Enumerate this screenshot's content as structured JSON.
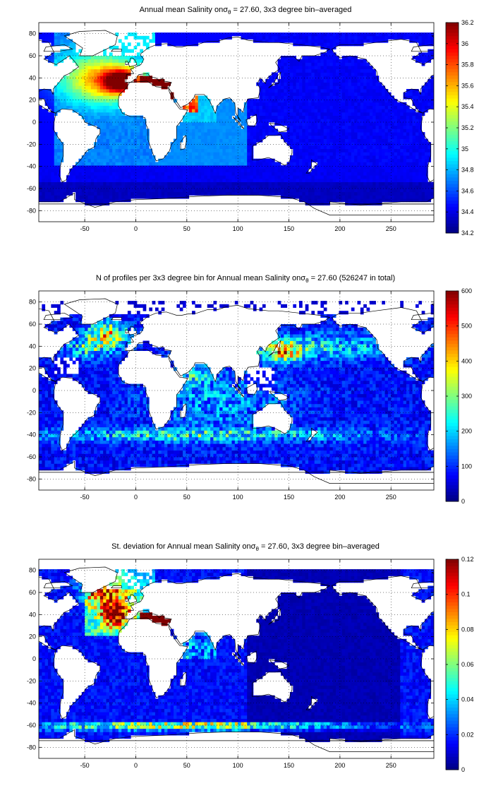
{
  "colormap": "jet",
  "land_color": "#ffffff",
  "chart_data": [
    {
      "type": "heatmap",
      "title_pre": "Annual mean Salinity on",
      "title_symbol": "σ",
      "title_subscript": "θ",
      "title_post": " = 27.60, 3x3 degree bin–averaged",
      "xlabel": "",
      "ylabel": "",
      "xlim": [
        -95,
        292
      ],
      "ylim": [
        -90,
        90
      ],
      "xticks": [
        -50,
        0,
        50,
        100,
        150,
        200,
        250
      ],
      "yticks": [
        -80,
        -60,
        -40,
        -20,
        0,
        20,
        40,
        60,
        80
      ],
      "grid": true,
      "colorbar": {
        "min": 34.2,
        "max": 36.2,
        "ticks": [
          34.2,
          34.4,
          34.6,
          34.8,
          35,
          35.2,
          35.4,
          35.6,
          35.8,
          36,
          36.2
        ]
      },
      "field": "salinity"
    },
    {
      "type": "heatmap",
      "title_pre": "N of profiles per 3x3 degree bin for Annual mean Salinity on",
      "title_symbol": "σ",
      "title_subscript": "θ",
      "title_post": " = 27.60 (526247 in total)",
      "xlabel": "",
      "ylabel": "",
      "xlim": [
        -95,
        292
      ],
      "ylim": [
        -90,
        90
      ],
      "xticks": [
        -50,
        0,
        50,
        100,
        150,
        200,
        250
      ],
      "yticks": [
        -80,
        -60,
        -40,
        -20,
        0,
        20,
        40,
        60,
        80
      ],
      "grid": true,
      "colorbar": {
        "min": 0,
        "max": 600,
        "ticks": [
          0,
          100,
          200,
          300,
          400,
          500,
          600
        ]
      },
      "field": "count"
    },
    {
      "type": "heatmap",
      "title_pre": "St. deviation for Annual mean Salinity on",
      "title_symbol": "σ",
      "title_subscript": "θ",
      "title_post": " = 27.60, 3x3 degree bin–averaged",
      "xlabel": "",
      "ylabel": "",
      "xlim": [
        -95,
        292
      ],
      "ylim": [
        -90,
        90
      ],
      "xticks": [
        -50,
        0,
        50,
        100,
        150,
        200,
        250
      ],
      "yticks": [
        -80,
        -60,
        -40,
        -20,
        0,
        20,
        40,
        60,
        80
      ],
      "grid": true,
      "colorbar": {
        "min": 0,
        "max": 0.12,
        "ticks": [
          0,
          0.02,
          0.04,
          0.06,
          0.08,
          0.1,
          0.12
        ]
      },
      "field": "stdev"
    }
  ]
}
